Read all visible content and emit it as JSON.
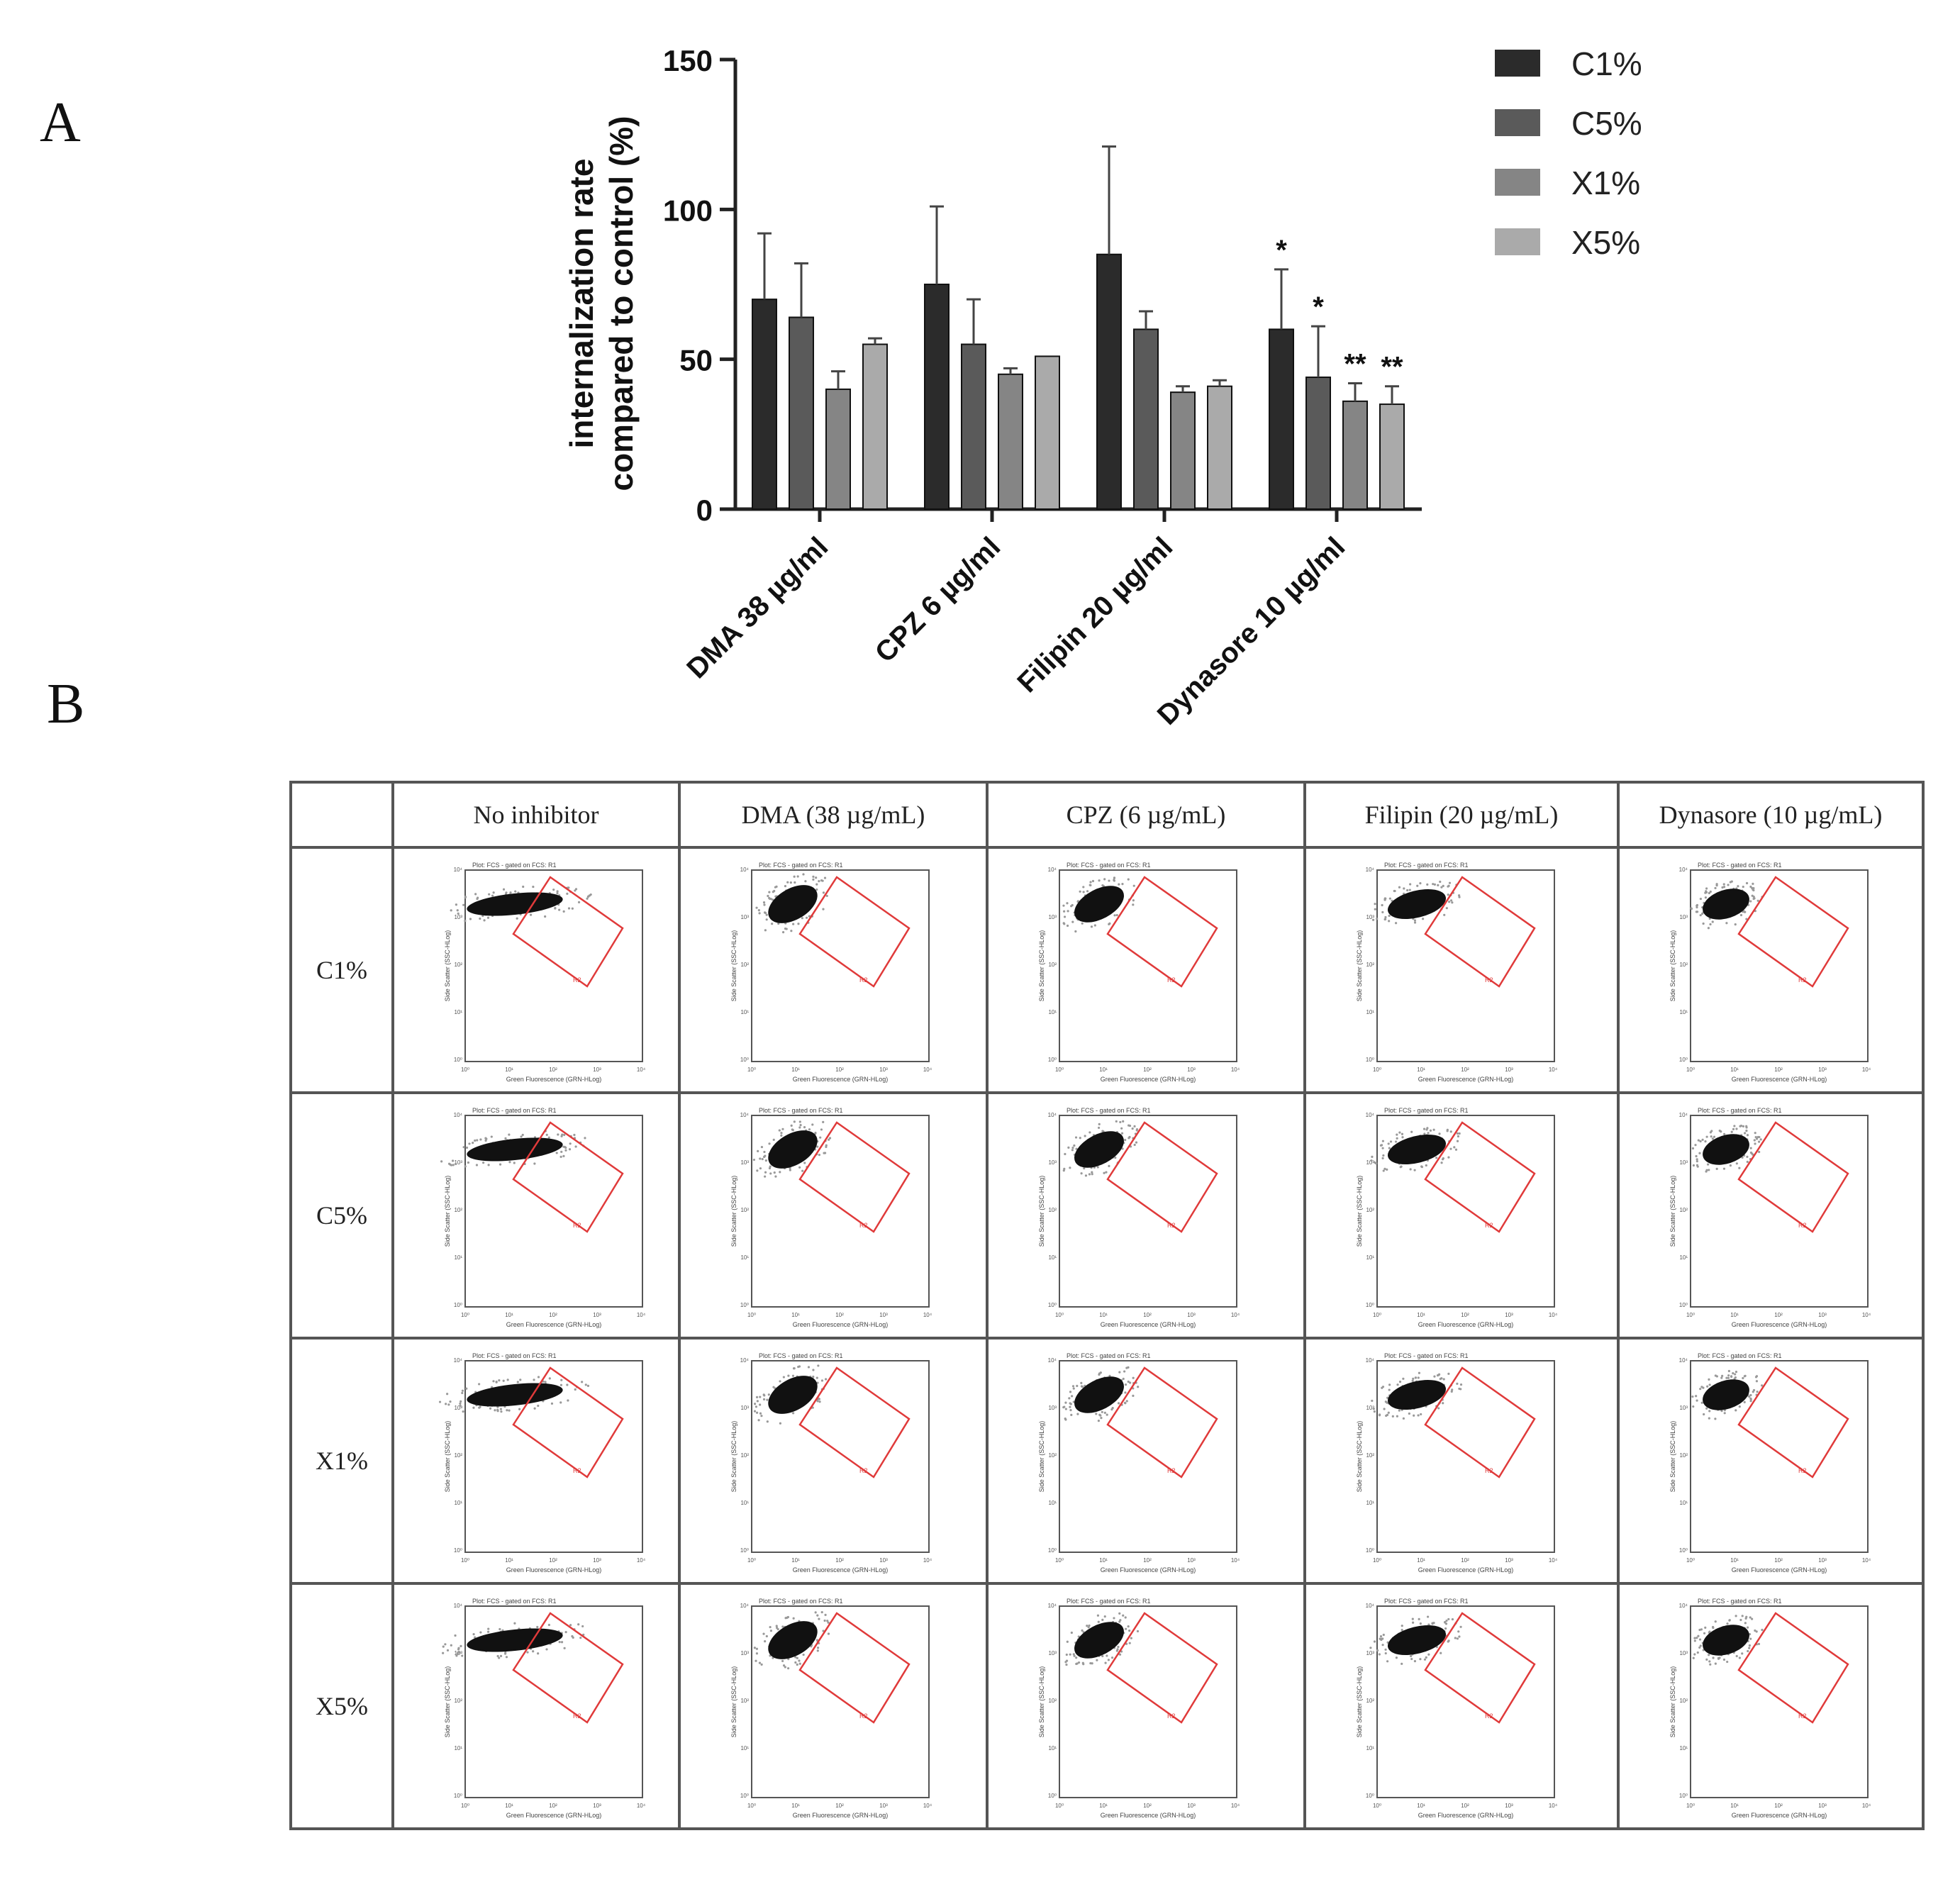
{
  "panel_labels": {
    "a": "A",
    "b": "B"
  },
  "chart_data": {
    "type": "bar",
    "ylabel_line1": "internalization rate",
    "ylabel_line2": "compared to control (%)",
    "xlabel": "",
    "ylim": [
      0,
      150
    ],
    "yticks": [
      0,
      50,
      100,
      150
    ],
    "categories": [
      "DMA 38 µg/ml",
      "CPZ 6 µg/ml",
      "Filipin 20 µg/ml",
      "Dynasore 10 µg/ml"
    ],
    "series": [
      {
        "name": "C1%",
        "color": "#2b2b2b",
        "values": [
          70,
          75,
          85,
          60
        ],
        "errors": [
          22,
          26,
          36,
          20
        ]
      },
      {
        "name": "C5%",
        "color": "#5a5a5a",
        "values": [
          64,
          55,
          60,
          44
        ],
        "errors": [
          18,
          15,
          6,
          17
        ]
      },
      {
        "name": "X1%",
        "color": "#858585",
        "values": [
          40,
          45,
          39,
          36
        ],
        "errors": [
          6,
          2,
          2,
          6
        ]
      },
      {
        "name": "X5%",
        "color": "#aaaaaa",
        "values": [
          55,
          51,
          41,
          35
        ],
        "errors": [
          2,
          0,
          2,
          6
        ]
      }
    ],
    "annotations": [
      {
        "category": 3,
        "series": 0,
        "text": "*"
      },
      {
        "category": 3,
        "series": 1,
        "text": "*"
      },
      {
        "category": 3,
        "series": 2,
        "text": "**"
      },
      {
        "category": 3,
        "series": 3,
        "text": "**"
      }
    ],
    "legend_position": "top-right"
  },
  "table": {
    "columns": [
      "No inhibitor",
      "DMA (38 µg/mL)",
      "CPZ (6 µg/mL)",
      "Filipin (20 µg/mL)",
      "Dynasore (10 µg/mL)"
    ],
    "rows": [
      "C1%",
      "C5%",
      "X1%",
      "X5%"
    ],
    "plot_title": "Plot: FCS - gated on FCS: R1",
    "plot_xlabel": "Green Fluorescence (GRN-HLog)",
    "plot_ylabel": "Side Scatter (SSC-HLog)",
    "gate_label": "R2",
    "plot_ticks": [
      "10⁰",
      "10¹",
      "10²",
      "10³",
      "10⁴"
    ]
  }
}
